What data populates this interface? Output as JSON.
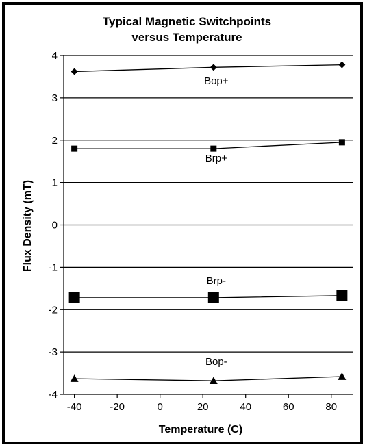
{
  "chart_data": {
    "type": "line",
    "title": "Typical Magnetic Switchpoints",
    "subtitle": "versus Temperature",
    "xlabel": "Temperature (C)",
    "ylabel": "Flux Density (mT)",
    "xlim": [
      -45,
      90
    ],
    "ylim": [
      -4,
      4
    ],
    "xticks": [
      "-40",
      "-20",
      "0",
      "20",
      "40",
      "60",
      "80"
    ],
    "xtick_values": [
      -40,
      -20,
      0,
      20,
      40,
      60,
      80
    ],
    "yticks": [
      "4",
      "3",
      "2",
      "1",
      "0",
      "-1",
      "-2",
      "-3",
      "-4"
    ],
    "ytick_values": [
      4,
      3,
      2,
      1,
      0,
      -1,
      -2,
      -3,
      -4
    ],
    "grid": "horizontal",
    "line_color": "#000000",
    "series": [
      {
        "name": "Bop+",
        "marker": "diamond",
        "x": [
          -40,
          25,
          85
        ],
        "y": [
          3.62,
          3.72,
          3.78
        ]
      },
      {
        "name": "Brp+",
        "marker": "square-small",
        "x": [
          -40,
          25,
          85
        ],
        "y": [
          1.8,
          1.8,
          1.95
        ]
      },
      {
        "name": "Brp-",
        "marker": "square-large",
        "x": [
          -40,
          25,
          85
        ],
        "y": [
          -1.72,
          -1.72,
          -1.67
        ]
      },
      {
        "name": "Bop-",
        "marker": "triangle",
        "x": [
          -40,
          25,
          85
        ],
        "y": [
          -3.63,
          -3.68,
          -3.58
        ]
      }
    ]
  }
}
